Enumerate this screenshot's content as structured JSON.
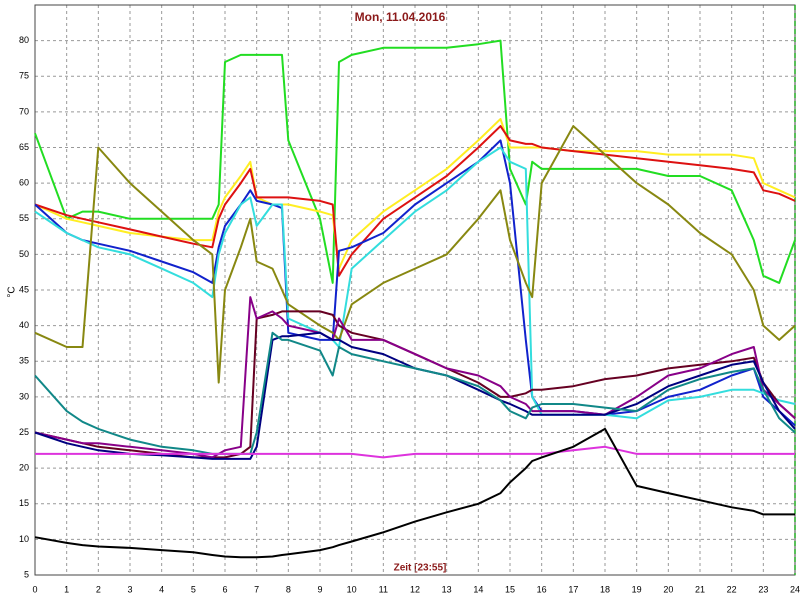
{
  "chart_data": {
    "type": "line",
    "title": "Mon, 11.04.2016",
    "xlabel": "Zeit [23:55]",
    "ylabel": "°C",
    "x": [
      0,
      1,
      1.5,
      2,
      3,
      4,
      5,
      5.6,
      5.8,
      6,
      6.5,
      6.8,
      7,
      7.5,
      7.8,
      8,
      9,
      9.4,
      9.6,
      10,
      11,
      12,
      13,
      14,
      14.7,
      15,
      15.5,
      15.7,
      16,
      17,
      18,
      19,
      20,
      21,
      22,
      22.7,
      23,
      23.5,
      24
    ],
    "xlim": [
      0,
      24
    ],
    "xticks": [
      0,
      1,
      2,
      3,
      4,
      5,
      6,
      7,
      8,
      9,
      10,
      11,
      12,
      13,
      14,
      15,
      16,
      17,
      18,
      19,
      20,
      21,
      22,
      23,
      24
    ],
    "ylim": [
      5,
      85
    ],
    "yticks": [
      5,
      10,
      15,
      20,
      25,
      30,
      35,
      40,
      45,
      50,
      55,
      60,
      65,
      70,
      75,
      80
    ],
    "grid": true,
    "series": [
      {
        "color": "#22dd22",
        "values": [
          67,
          55,
          56,
          56,
          55,
          55,
          55,
          55,
          57,
          77,
          78,
          78,
          78,
          78,
          78,
          66,
          55,
          46,
          77,
          78,
          79,
          79,
          79,
          79.5,
          80,
          62,
          57,
          63,
          62,
          62,
          62,
          62,
          61,
          61,
          59,
          52,
          47,
          46,
          52
        ]
      },
      {
        "color": "#ffee22",
        "values": [
          57,
          55,
          54.5,
          54,
          53,
          52.5,
          52,
          52,
          56,
          58,
          61,
          63,
          58,
          57,
          57,
          57,
          56,
          55.5,
          48,
          52,
          56,
          59,
          62,
          66,
          69,
          65,
          65,
          65,
          65,
          64.5,
          64.5,
          64.5,
          64,
          64,
          64,
          63.5,
          60,
          59,
          58
        ]
      },
      {
        "color": "#dd1111",
        "values": [
          57,
          55.5,
          55,
          54.5,
          53.5,
          52.5,
          51.5,
          51,
          55,
          57,
          60,
          62,
          58,
          58,
          58,
          58,
          57.5,
          57,
          47,
          50,
          55,
          58,
          61,
          65,
          68,
          66,
          65.5,
          65.5,
          65,
          64.5,
          64,
          63.5,
          63,
          62.5,
          62,
          61.5,
          59,
          58.5,
          57.5
        ]
      },
      {
        "color": "#1122cc",
        "values": [
          57,
          53,
          52,
          51.5,
          50.5,
          49,
          47.5,
          46,
          51,
          54,
          57,
          59,
          57.5,
          57,
          56.5,
          39,
          38,
          38,
          50.5,
          51,
          53,
          57,
          60,
          63,
          66,
          60,
          38,
          30,
          28,
          28,
          27.5,
          28,
          30,
          31,
          33,
          34,
          30,
          28,
          26
        ]
      },
      {
        "color": "#33dddd",
        "values": [
          56,
          53,
          52,
          51,
          50,
          48,
          46,
          44,
          50,
          53,
          57,
          58,
          54,
          57,
          57,
          41,
          39,
          38,
          37,
          48,
          52,
          56,
          59,
          63,
          65,
          63,
          62,
          30,
          27.5,
          27.5,
          27.5,
          27,
          29.5,
          30,
          31,
          31,
          30.5,
          29.5,
          29
        ]
      },
      {
        "color": "#888811",
        "values": [
          39,
          37,
          37,
          65,
          60,
          56,
          52,
          50,
          32,
          45,
          51,
          55,
          49,
          48,
          45,
          43,
          40,
          39,
          38,
          43,
          46,
          48,
          50,
          55,
          59,
          52,
          46,
          44,
          60,
          68,
          64,
          60,
          57,
          53,
          50,
          45,
          40,
          38,
          40
        ]
      },
      {
        "color": "#660022",
        "values": [
          25,
          24,
          23.5,
          23,
          22.5,
          22,
          21.5,
          21.5,
          21.5,
          21.5,
          22,
          23,
          41,
          41.5,
          42,
          42,
          42,
          41.5,
          40,
          39,
          38,
          36,
          34,
          32,
          30,
          30,
          30.5,
          31,
          31,
          31.5,
          32.5,
          33,
          34,
          34.5,
          35,
          35.5,
          32,
          29,
          27
        ]
      },
      {
        "color": "#880088",
        "values": [
          25,
          24,
          23.5,
          23.5,
          23,
          22.5,
          22,
          21.5,
          22,
          22.5,
          23,
          44,
          41,
          42,
          41,
          40,
          39,
          38,
          41,
          38,
          38,
          36,
          34,
          33,
          31.5,
          30,
          29,
          28,
          28,
          28,
          27.5,
          30,
          33,
          34,
          36,
          37,
          31,
          29,
          27
        ]
      },
      {
        "color": "#000080",
        "values": [
          25,
          23.5,
          23,
          22.5,
          22,
          21.8,
          21.5,
          21.3,
          21.3,
          21.3,
          21.3,
          21.3,
          23,
          38,
          38.5,
          38.5,
          39,
          38,
          38,
          37,
          36,
          34,
          33,
          31,
          29.5,
          29,
          28,
          27.5,
          27.5,
          27.5,
          27.5,
          29,
          31.5,
          33,
          34.5,
          35,
          32,
          28,
          25.5
        ]
      },
      {
        "color": "#118888",
        "values": [
          33,
          28,
          26.5,
          25.5,
          24,
          23,
          22.5,
          22,
          22,
          22,
          22,
          22,
          25,
          39,
          38,
          38,
          36.5,
          33,
          37,
          36,
          35,
          34,
          33,
          31.5,
          29.5,
          28,
          27,
          28.5,
          29,
          29,
          28.5,
          28,
          31,
          32.5,
          33.5,
          34,
          31,
          27,
          25
        ]
      },
      {
        "color": "#dd33dd",
        "values": [
          22,
          22,
          22,
          22,
          22,
          22,
          22,
          22,
          22,
          22,
          22,
          22,
          22,
          22,
          22,
          22,
          22,
          22,
          22,
          22,
          21.5,
          22,
          22,
          22,
          22,
          22,
          22,
          22,
          22,
          22.5,
          23,
          22,
          22,
          22,
          22,
          22,
          22,
          22,
          22
        ]
      },
      {
        "color": "#000000",
        "values": [
          10.3,
          9.5,
          9.2,
          9,
          8.8,
          8.5,
          8.2,
          7.8,
          7.7,
          7.6,
          7.5,
          7.5,
          7.5,
          7.6,
          7.8,
          7.9,
          8.5,
          8.9,
          9.2,
          9.7,
          11,
          12.5,
          13.8,
          15,
          16.5,
          18,
          20,
          21,
          21.5,
          23,
          25.5,
          17.5,
          16.5,
          15.5,
          14.5,
          14,
          13.5,
          13.5,
          13.5
        ]
      }
    ]
  }
}
